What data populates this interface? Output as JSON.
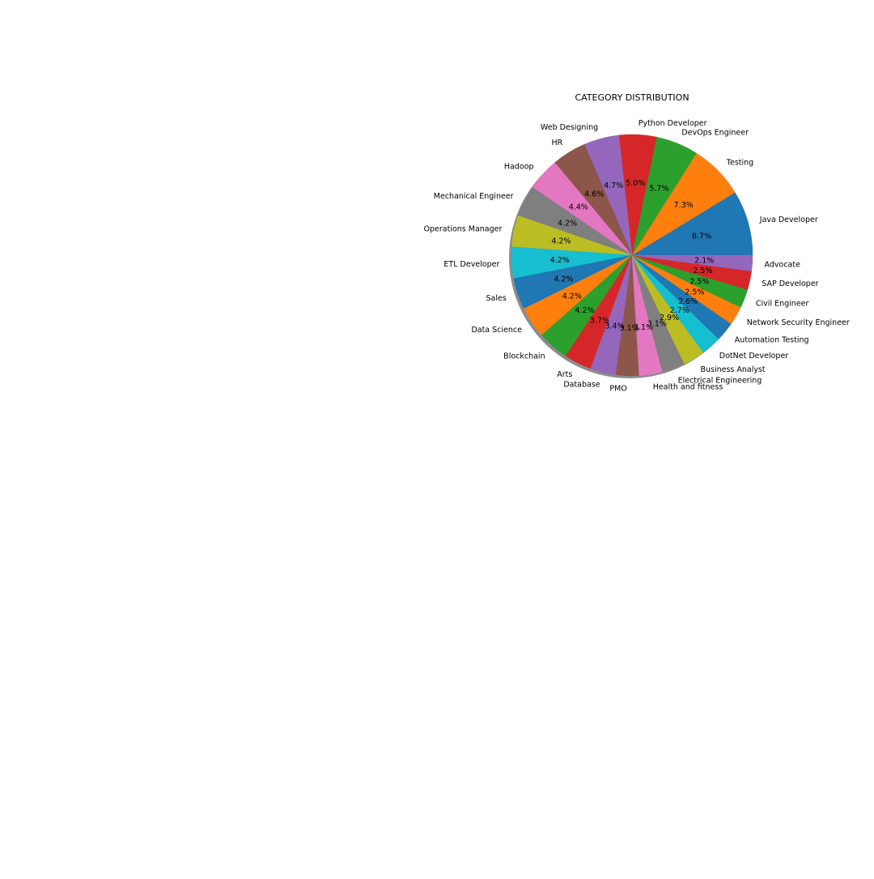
{
  "chart_data": {
    "type": "pie",
    "title": "CATEGORY DISTRIBUTION",
    "start_angle_deg": 0,
    "direction": "counterclockwise",
    "shadow": true,
    "slices": [
      {
        "label": "Java Developer",
        "value": 8.7,
        "pct_label": "8.7%",
        "color": "#1f77b4"
      },
      {
        "label": "Testing",
        "value": 7.3,
        "pct_label": "7.3%",
        "color": "#ff7f0e"
      },
      {
        "label": "DevOps Engineer",
        "value": 5.7,
        "pct_label": "5.7%",
        "color": "#2ca02c"
      },
      {
        "label": "Python Developer",
        "value": 5.0,
        "pct_label": "5.0%",
        "color": "#d62728"
      },
      {
        "label": "Web Designing",
        "value": 4.7,
        "pct_label": "4.7%",
        "color": "#9467bd"
      },
      {
        "label": "HR",
        "value": 4.6,
        "pct_label": "4.6%",
        "color": "#8c564b"
      },
      {
        "label": "Hadoop",
        "value": 4.4,
        "pct_label": "4.4%",
        "color": "#e377c2"
      },
      {
        "label": "Mechanical Engineer",
        "value": 4.2,
        "pct_label": "4.2%",
        "color": "#7f7f7f"
      },
      {
        "label": "Operations Manager",
        "value": 4.2,
        "pct_label": "4.2%",
        "color": "#bcbd22"
      },
      {
        "label": "ETL Developer",
        "value": 4.2,
        "pct_label": "4.2%",
        "color": "#17becf"
      },
      {
        "label": "Sales",
        "value": 4.2,
        "pct_label": "4.2%",
        "color": "#1f77b4"
      },
      {
        "label": "Data Science",
        "value": 4.2,
        "pct_label": "4.2%",
        "color": "#ff7f0e"
      },
      {
        "label": "Blockchain",
        "value": 4.2,
        "pct_label": "4.2%",
        "color": "#2ca02c"
      },
      {
        "label": "Arts",
        "value": 3.7,
        "pct_label": "3.7%",
        "color": "#d62728"
      },
      {
        "label": "Database",
        "value": 3.4,
        "pct_label": "3.4%",
        "color": "#9467bd"
      },
      {
        "label": "PMO",
        "value": 3.1,
        "pct_label": "3.1%",
        "color": "#8c564b"
      },
      {
        "label": "Health and fitness",
        "value": 3.1,
        "pct_label": "3.1%",
        "color": "#e377c2"
      },
      {
        "label": "Electrical Engineering",
        "value": 3.1,
        "pct_label": "3.1%",
        "color": "#7f7f7f"
      },
      {
        "label": "Business Analyst",
        "value": 2.9,
        "pct_label": "2.9%",
        "color": "#bcbd22"
      },
      {
        "label": "DotNet Developer",
        "value": 2.7,
        "pct_label": "2.7%",
        "color": "#17becf"
      },
      {
        "label": "Automation Testing",
        "value": 2.6,
        "pct_label": "2.6%",
        "color": "#1f77b4"
      },
      {
        "label": "Network Security Engineer",
        "value": 2.5,
        "pct_label": "2.5%",
        "color": "#ff7f0e"
      },
      {
        "label": "Civil Engineer",
        "value": 2.5,
        "pct_label": "2.5%",
        "color": "#2ca02c"
      },
      {
        "label": "SAP Developer",
        "value": 2.5,
        "pct_label": "2.5%",
        "color": "#d62728"
      },
      {
        "label": "Advocate",
        "value": 2.1,
        "pct_label": "2.1%",
        "color": "#9467bd"
      }
    ]
  }
}
